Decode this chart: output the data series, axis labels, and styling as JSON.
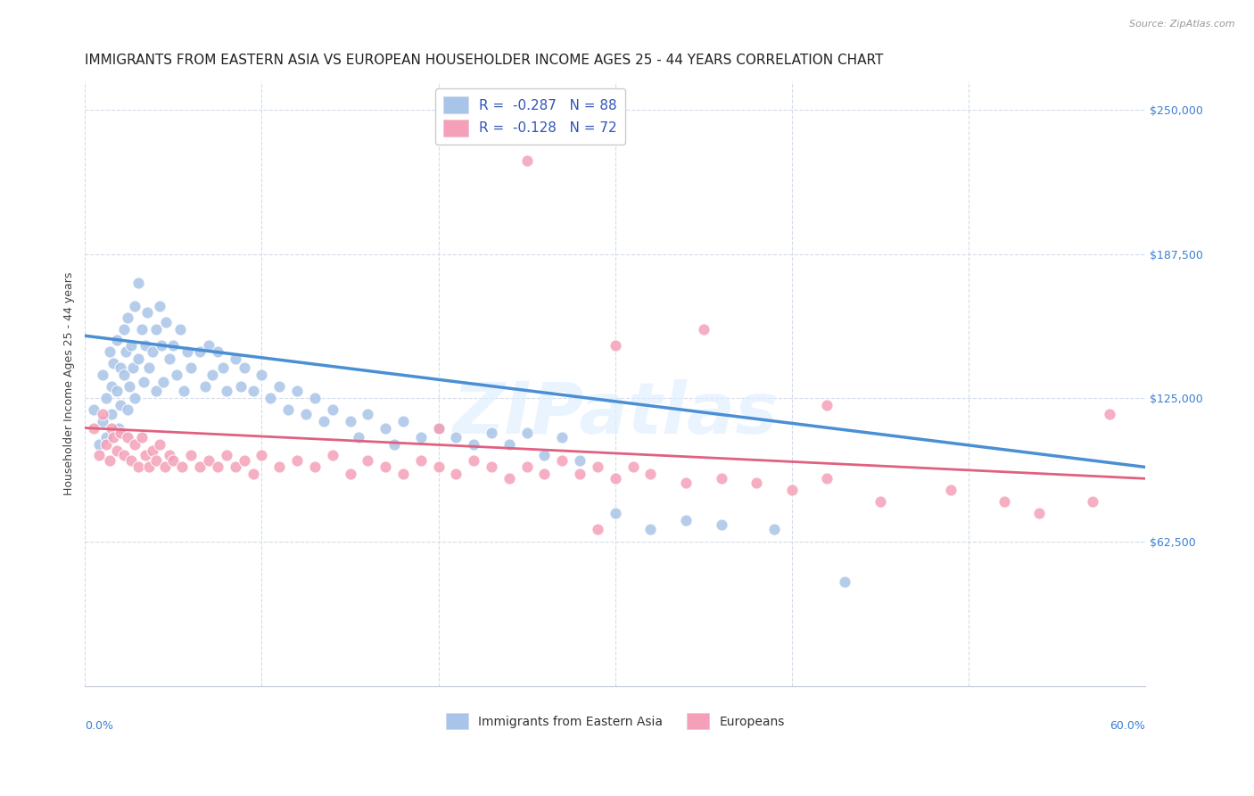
{
  "title": "IMMIGRANTS FROM EASTERN ASIA VS EUROPEAN HOUSEHOLDER INCOME AGES 25 - 44 YEARS CORRELATION CHART",
  "source": "Source: ZipAtlas.com",
  "ylabel": "Householder Income Ages 25 - 44 years",
  "ylabel_values": [
    62500,
    125000,
    187500,
    250000
  ],
  "xmin": 0.0,
  "xmax": 0.6,
  "ymin": 0,
  "ymax": 262500,
  "series1_label": "Immigrants from Eastern Asia",
  "series2_label": "Europeans",
  "series1_color": "#a8c4e8",
  "series2_color": "#f4a0b8",
  "trendline1_x": [
    0.0,
    0.6
  ],
  "trendline1_y": [
    152000,
    95000
  ],
  "trendline1_color": "#4a8fd4",
  "trendline2_x": [
    0.0,
    0.6
  ],
  "trendline2_y": [
    112000,
    90000
  ],
  "trendline2_color": "#e06080",
  "legend_r1": "-0.287",
  "legend_n1": "88",
  "legend_r2": "-0.128",
  "legend_n2": "72",
  "legend_color1": "#a8c4e8",
  "legend_color2": "#f4a0b8",
  "legend_text_color": "#3355bb",
  "watermark": "ZIPatlas",
  "watermark_color": "#ddeeff",
  "grid_color": "#d4dce8",
  "bg_color": "#ffffff",
  "title_fontsize": 11,
  "axis_label_fontsize": 9,
  "tick_fontsize": 9,
  "scatter1_x": [
    0.005,
    0.008,
    0.01,
    0.01,
    0.012,
    0.012,
    0.014,
    0.015,
    0.015,
    0.016,
    0.018,
    0.018,
    0.019,
    0.02,
    0.02,
    0.022,
    0.022,
    0.023,
    0.024,
    0.024,
    0.025,
    0.026,
    0.027,
    0.028,
    0.028,
    0.03,
    0.03,
    0.032,
    0.033,
    0.034,
    0.035,
    0.036,
    0.038,
    0.04,
    0.04,
    0.042,
    0.043,
    0.044,
    0.046,
    0.048,
    0.05,
    0.052,
    0.054,
    0.056,
    0.058,
    0.06,
    0.065,
    0.068,
    0.07,
    0.072,
    0.075,
    0.078,
    0.08,
    0.085,
    0.088,
    0.09,
    0.095,
    0.1,
    0.105,
    0.11,
    0.115,
    0.12,
    0.125,
    0.13,
    0.135,
    0.14,
    0.15,
    0.155,
    0.16,
    0.17,
    0.175,
    0.18,
    0.19,
    0.2,
    0.21,
    0.22,
    0.23,
    0.24,
    0.25,
    0.26,
    0.27,
    0.28,
    0.3,
    0.32,
    0.34,
    0.36,
    0.39,
    0.43
  ],
  "scatter1_y": [
    120000,
    105000,
    135000,
    115000,
    125000,
    108000,
    145000,
    130000,
    118000,
    140000,
    128000,
    150000,
    112000,
    138000,
    122000,
    155000,
    135000,
    145000,
    120000,
    160000,
    130000,
    148000,
    138000,
    165000,
    125000,
    175000,
    142000,
    155000,
    132000,
    148000,
    162000,
    138000,
    145000,
    155000,
    128000,
    165000,
    148000,
    132000,
    158000,
    142000,
    148000,
    135000,
    155000,
    128000,
    145000,
    138000,
    145000,
    130000,
    148000,
    135000,
    145000,
    138000,
    128000,
    142000,
    130000,
    138000,
    128000,
    135000,
    125000,
    130000,
    120000,
    128000,
    118000,
    125000,
    115000,
    120000,
    115000,
    108000,
    118000,
    112000,
    105000,
    115000,
    108000,
    112000,
    108000,
    105000,
    110000,
    105000,
    110000,
    100000,
    108000,
    98000,
    75000,
    68000,
    72000,
    70000,
    68000,
    45000
  ],
  "scatter2_x": [
    0.005,
    0.008,
    0.01,
    0.012,
    0.014,
    0.015,
    0.016,
    0.018,
    0.02,
    0.022,
    0.024,
    0.026,
    0.028,
    0.03,
    0.032,
    0.034,
    0.036,
    0.038,
    0.04,
    0.042,
    0.045,
    0.048,
    0.05,
    0.055,
    0.06,
    0.065,
    0.07,
    0.075,
    0.08,
    0.085,
    0.09,
    0.095,
    0.1,
    0.11,
    0.12,
    0.13,
    0.14,
    0.15,
    0.16,
    0.17,
    0.18,
    0.19,
    0.2,
    0.21,
    0.22,
    0.23,
    0.24,
    0.25,
    0.26,
    0.27,
    0.28,
    0.29,
    0.3,
    0.31,
    0.32,
    0.34,
    0.36,
    0.38,
    0.4,
    0.42,
    0.45,
    0.49,
    0.52,
    0.54,
    0.57,
    0.3,
    0.35,
    0.25,
    0.42,
    0.2,
    0.29,
    0.58
  ],
  "scatter2_y": [
    112000,
    100000,
    118000,
    105000,
    98000,
    112000,
    108000,
    102000,
    110000,
    100000,
    108000,
    98000,
    105000,
    95000,
    108000,
    100000,
    95000,
    102000,
    98000,
    105000,
    95000,
    100000,
    98000,
    95000,
    100000,
    95000,
    98000,
    95000,
    100000,
    95000,
    98000,
    92000,
    100000,
    95000,
    98000,
    95000,
    100000,
    92000,
    98000,
    95000,
    92000,
    98000,
    95000,
    92000,
    98000,
    95000,
    90000,
    95000,
    92000,
    98000,
    92000,
    95000,
    90000,
    95000,
    92000,
    88000,
    90000,
    88000,
    85000,
    90000,
    80000,
    85000,
    80000,
    75000,
    80000,
    148000,
    155000,
    228000,
    122000,
    112000,
    68000,
    118000
  ]
}
